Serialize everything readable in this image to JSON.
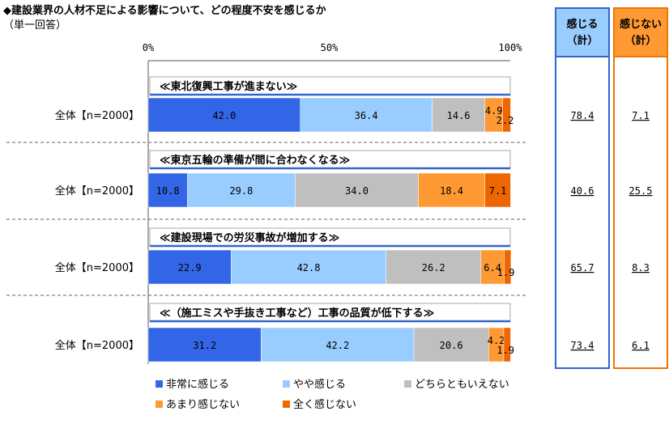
{
  "title": "◆建設業界の人材不足による影響について、どの程度不安を感じるか",
  "subtitle": "（単一回答）",
  "chart_data": {
    "type": "bar",
    "orientation": "horizontal-stacked-100",
    "x_ticks": [
      "0%",
      "50%",
      "100%"
    ],
    "xlim": [
      0,
      100
    ],
    "grid": false,
    "legend_position": "bottom",
    "series_names": [
      "非常に感じる",
      "やや感じる",
      "どちらともいえない",
      "あまり感じない",
      "全く感じない"
    ],
    "colors": [
      "#3366e6",
      "#99ccff",
      "#bfbfbf",
      "#ff9933",
      "#ee6600"
    ],
    "groups": [
      {
        "category": "≪東北復興工事が進まない≫",
        "row_label": "全体【n=2000】",
        "values": [
          42.0,
          36.4,
          14.6,
          4.9,
          2.2
        ],
        "labels": [
          "42.0",
          "36.4",
          "14.6",
          "4.9",
          "2.2"
        ],
        "feel_total": "78.4",
        "not_feel_total": "7.1"
      },
      {
        "category": "≪東京五輪の準備が間に合わなくなる≫",
        "row_label": "全体【n=2000】",
        "values": [
          10.8,
          29.8,
          34.0,
          18.4,
          7.1
        ],
        "labels": [
          "10.8",
          "29.8",
          "34.0",
          "18.4",
          "7.1"
        ],
        "feel_total": "40.6",
        "not_feel_total": "25.5"
      },
      {
        "category": "≪建設現場での労災事故が増加する≫",
        "row_label": "全体【n=2000】",
        "values": [
          22.9,
          42.8,
          26.2,
          6.4,
          1.9
        ],
        "labels": [
          "22.9",
          "42.8",
          "26.2",
          "6.4",
          "1.9"
        ],
        "feel_total": "65.7",
        "not_feel_total": "8.3"
      },
      {
        "category": "≪（施工ミスや手抜き工事など）工事の品質が低下する≫",
        "row_label": "全体【n=2000】",
        "values": [
          31.2,
          42.2,
          20.6,
          4.2,
          1.9
        ],
        "labels": [
          "31.2",
          "42.2",
          "20.6",
          "4.2",
          "1.9"
        ],
        "feel_total": "73.4",
        "not_feel_total": "6.1"
      }
    ],
    "summary_columns": [
      {
        "heading_line1": "感じる",
        "heading_line2": "（計）",
        "color": "#99ccff",
        "border": "#3366cc"
      },
      {
        "heading_line1": "感じない",
        "heading_line2": "（計）",
        "color": "#ff9933",
        "border": "#ee7700"
      }
    ]
  }
}
